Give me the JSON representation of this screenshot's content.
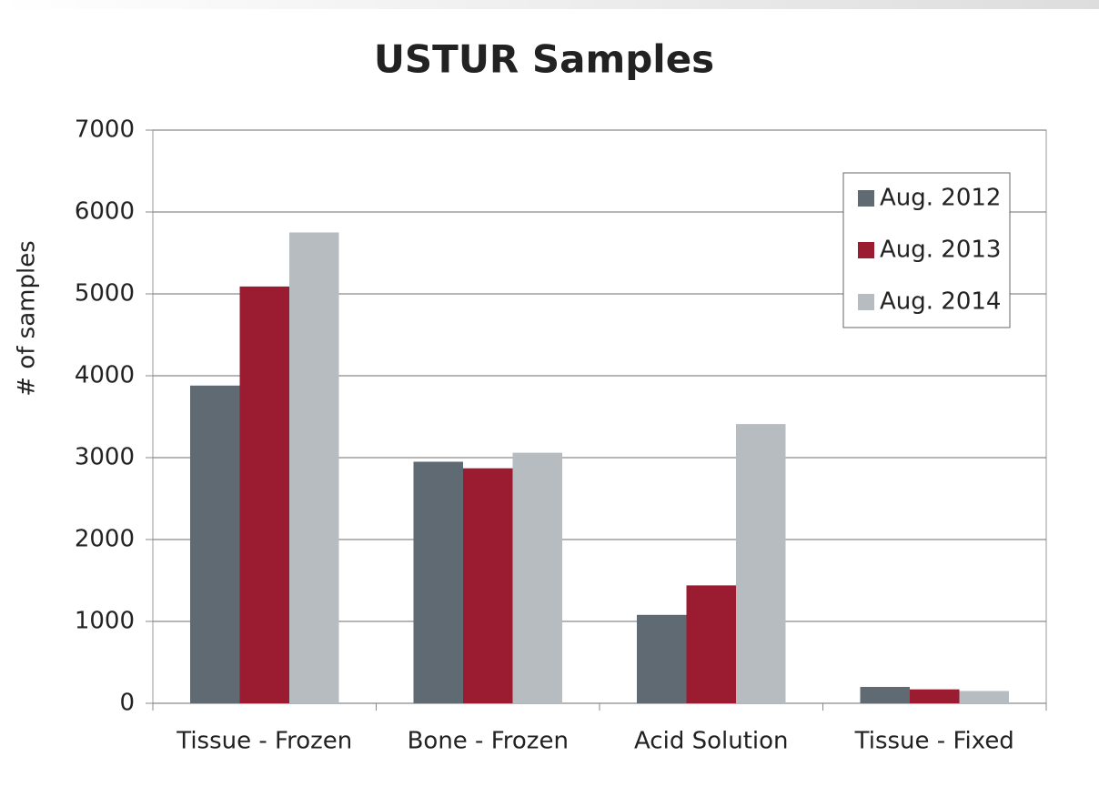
{
  "chart_data": {
    "type": "bar",
    "title": "USTUR Samples",
    "y_label": "# of samples",
    "categories": [
      "Tissue - Frozen",
      "Bone - Frozen",
      "Acid Solution",
      "Tissue - Fixed"
    ],
    "series": [
      {
        "name": "Aug. 2012",
        "color": "#5f6a72",
        "values": [
          3880,
          2950,
          1080,
          200
        ]
      },
      {
        "name": "Aug. 2013",
        "color": "#9b1c30",
        "values": [
          5090,
          2870,
          1440,
          170
        ]
      },
      {
        "name": "Aug. 2014",
        "color": "#b7bcc0",
        "values": [
          5750,
          3060,
          3410,
          150
        ]
      }
    ],
    "ylim": [
      0,
      7000
    ],
    "yticks": [
      0,
      1000,
      2000,
      3000,
      4000,
      5000,
      6000,
      7000
    ],
    "grid": true,
    "legend": "top-right"
  }
}
